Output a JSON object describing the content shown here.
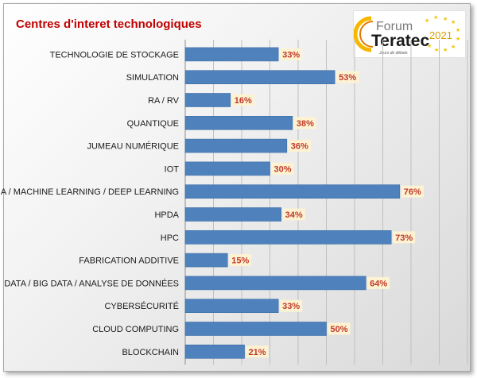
{
  "logo": {
    "word1": "Forum",
    "word2": "Teratec",
    "year": "2021",
    "tagline": "Jours de débats"
  },
  "colors": {
    "bar": "#4f81bd",
    "title": "#c00000",
    "value_label": "#c0392b",
    "value_label_bg": "#fdf3d2"
  },
  "chart_data": {
    "type": "bar",
    "orientation": "horizontal",
    "title": "Centres d'interet technologiques",
    "xlabel": "",
    "ylabel": "",
    "xlim": [
      0,
      100
    ],
    "grid": true,
    "categories": [
      "TECHNOLOGIE DE STOCKAGE",
      "SIMULATION",
      "RA / RV",
      "QUANTIQUE",
      "JUMEAU NUMÉRIQUE",
      "IOT",
      "IA / MACHINE LEARNING / DEEP LEARNING",
      "HPDA",
      "HPC",
      "FABRICATION ADDITIVE",
      "DATA / BIG DATA / ANALYSE DE DONNÉES",
      "CYBERSÉCURITÉ",
      "CLOUD COMPUTING",
      "BLOCKCHAIN"
    ],
    "values": [
      33,
      53,
      16,
      38,
      36,
      30,
      76,
      34,
      73,
      15,
      64,
      33,
      50,
      21
    ],
    "data_labels": [
      "33%",
      "53%",
      "16%",
      "38%",
      "36%",
      "30%",
      "76%",
      "34%",
      "73%",
      "15%",
      "64%",
      "33%",
      "50%",
      "21%"
    ]
  }
}
